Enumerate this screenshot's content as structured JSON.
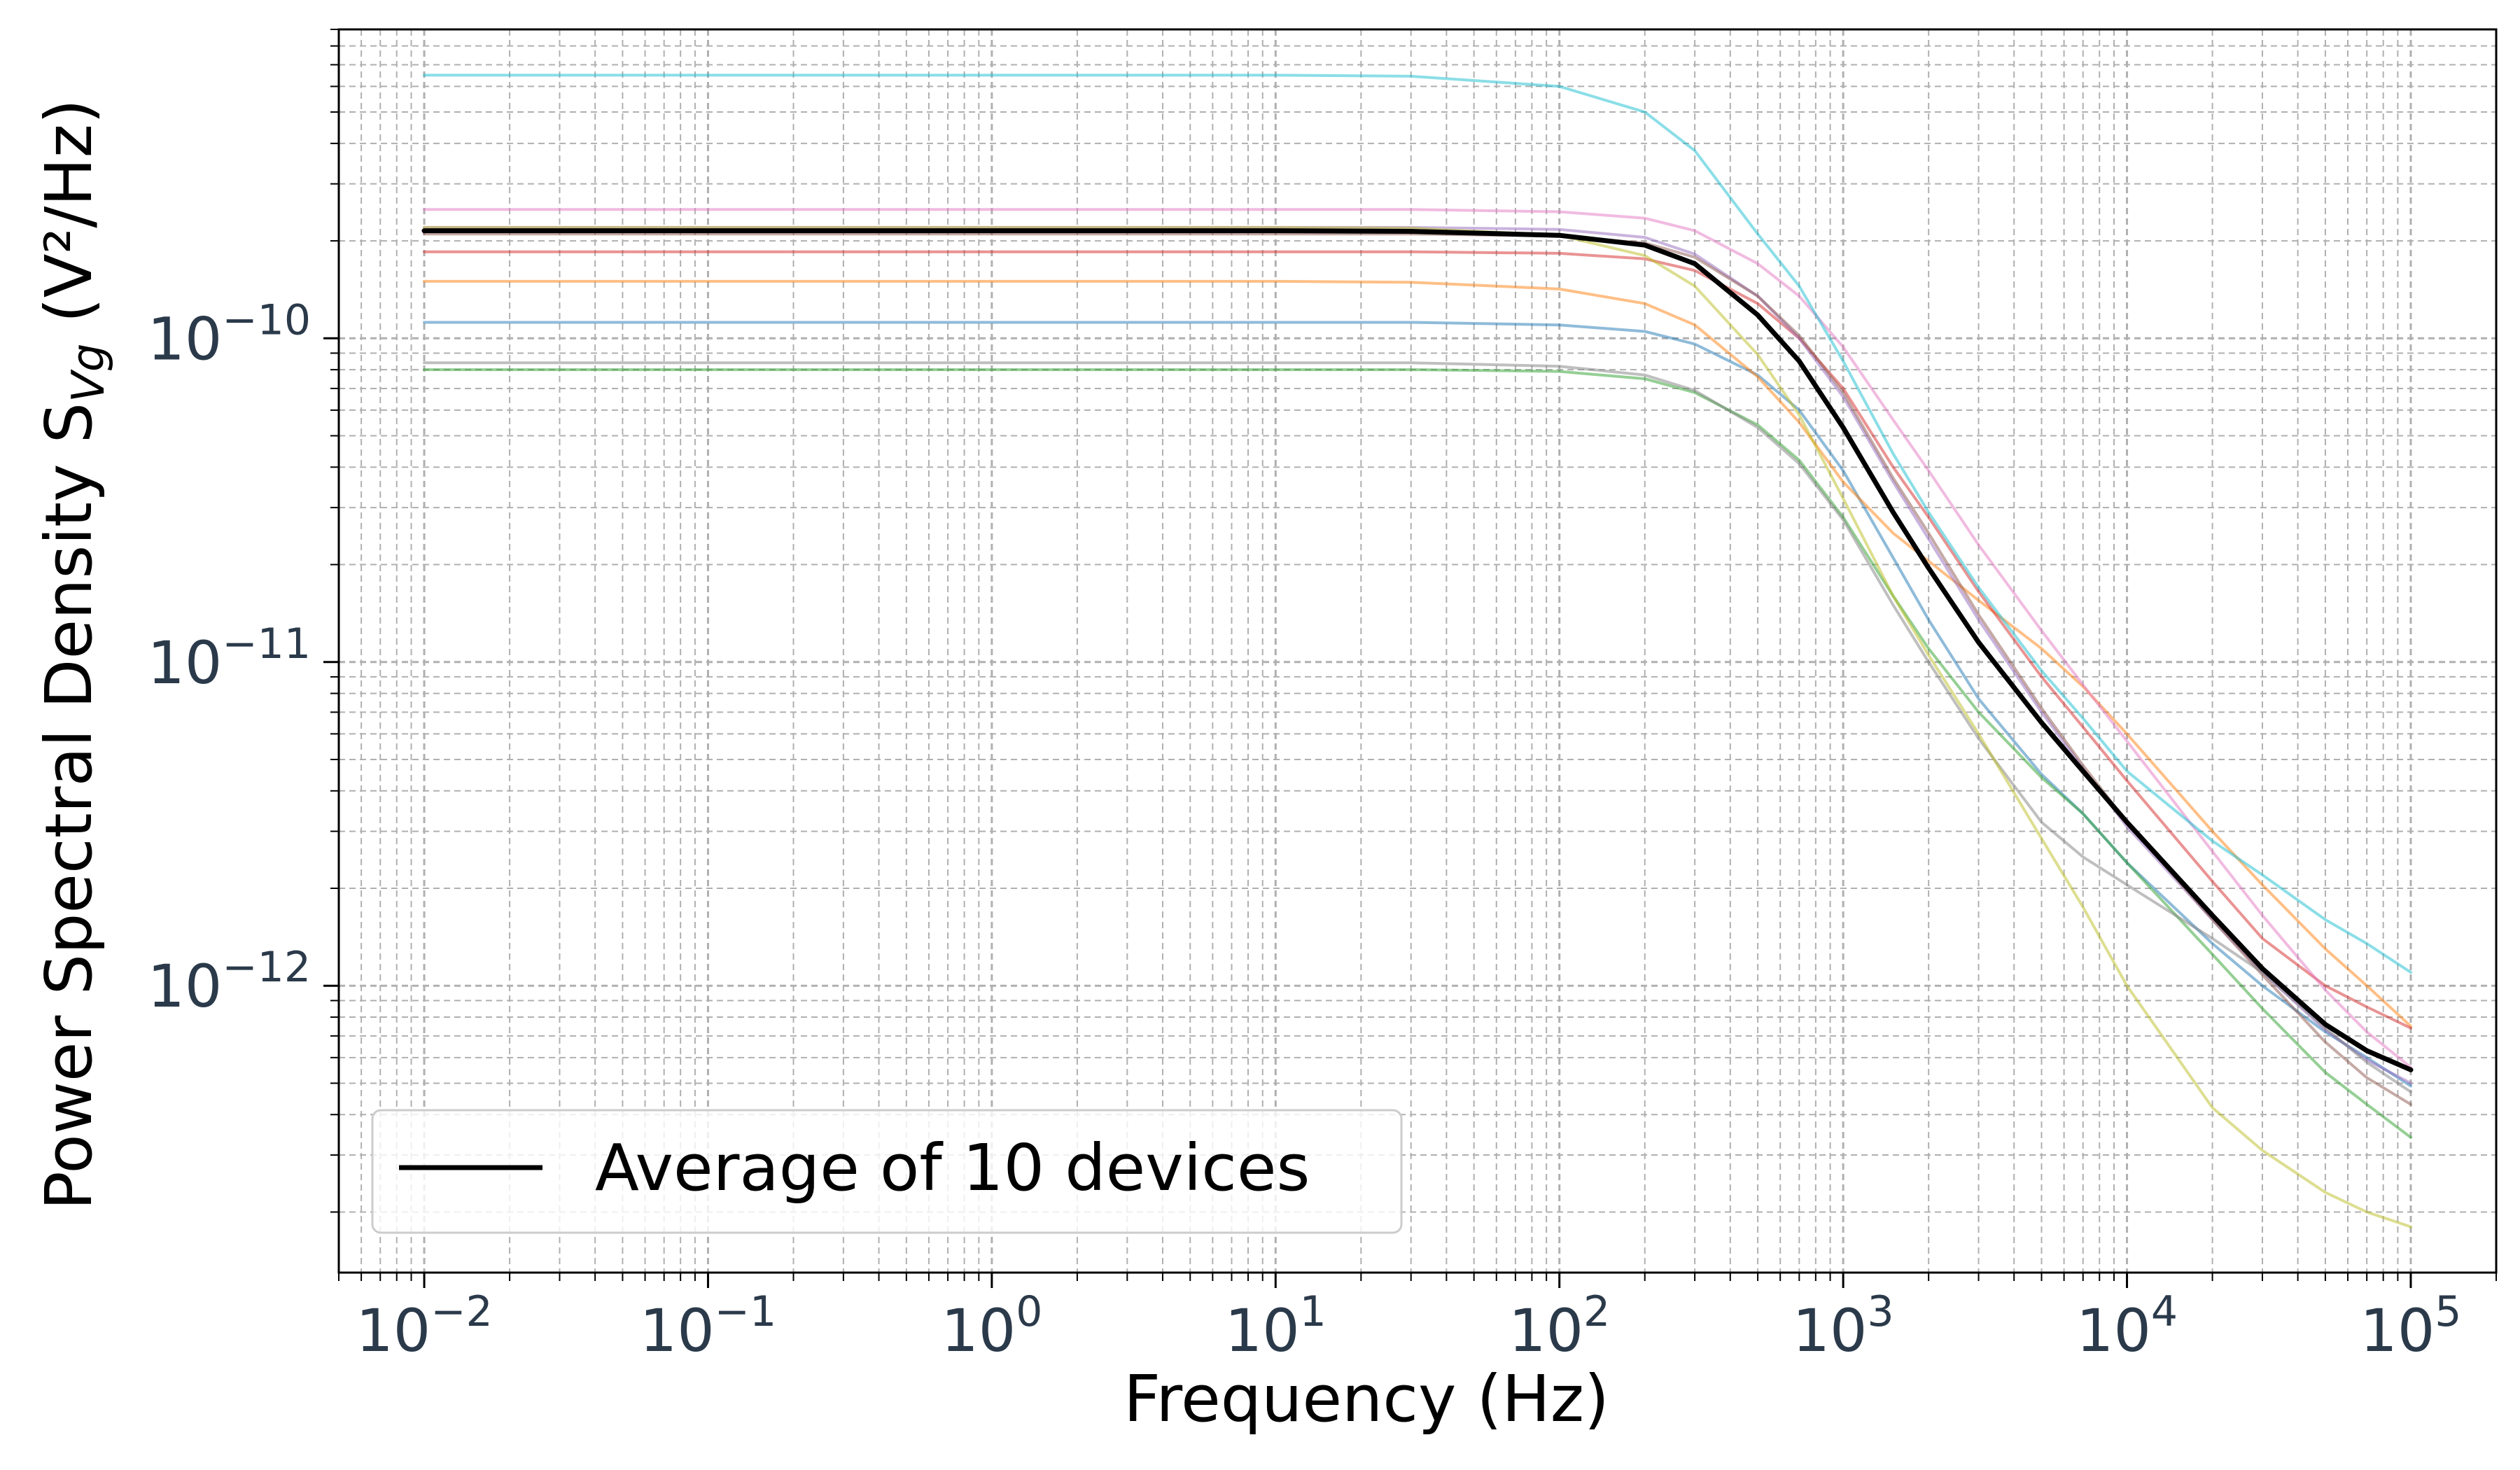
{
  "chart_data": {
    "type": "line",
    "title": "",
    "xlabel": "Frequency (Hz)",
    "ylabel_prefix": "Power Spectral Density S",
    "ylabel_sub": "Vg",
    "ylabel_suffix": " (V²/Hz)",
    "xscale": "log",
    "yscale": "log",
    "xlim": [
      0.005,
      200000
    ],
    "ylim": [
      1.3e-13,
      9e-10
    ],
    "grid": "major and minor, dashed",
    "legend_position": "lower-left",
    "x_ticks": [
      {
        "value": 0.01,
        "base": "10",
        "exp": "−2"
      },
      {
        "value": 0.1,
        "base": "10",
        "exp": "−1"
      },
      {
        "value": 1,
        "base": "10",
        "exp": "0"
      },
      {
        "value": 10,
        "base": "10",
        "exp": "1"
      },
      {
        "value": 100,
        "base": "10",
        "exp": "2"
      },
      {
        "value": 1000,
        "base": "10",
        "exp": "3"
      },
      {
        "value": 10000,
        "base": "10",
        "exp": "4"
      },
      {
        "value": 100000,
        "base": "10",
        "exp": "5"
      }
    ],
    "y_ticks": [
      {
        "value": 1e-12,
        "base": "10",
        "exp": "−12"
      },
      {
        "value": 1e-11,
        "base": "10",
        "exp": "−11"
      },
      {
        "value": 1e-10,
        "base": "10",
        "exp": "−10"
      }
    ],
    "x": [
      0.01,
      0.1,
      1,
      10,
      30,
      100,
      200,
      300,
      500,
      700,
      1000,
      1500,
      2000,
      3000,
      5000,
      7000,
      10000,
      20000,
      30000,
      50000,
      70000,
      100000
    ],
    "series": [
      {
        "color": "#1f77b4",
        "values": [
          1.12e-10,
          1.12e-10,
          1.12e-10,
          1.12e-10,
          1.12e-10,
          1.1e-10,
          1.05e-10,
          9.6e-11,
          7.7e-11,
          6e-11,
          3.9e-11,
          2.1e-11,
          1.35e-11,
          7.7e-12,
          4.5e-12,
          3.4e-12,
          2.4e-12,
          1.35e-12,
          1e-12,
          7.2e-13,
          6e-13,
          4.9e-13
        ]
      },
      {
        "color": "#ff7f0e",
        "values": [
          1.5e-10,
          1.5e-10,
          1.5e-10,
          1.5e-10,
          1.49e-10,
          1.42e-10,
          1.28e-10,
          1.1e-10,
          7.6e-11,
          5.5e-11,
          3.6e-11,
          2.5e-11,
          2.05e-11,
          1.55e-11,
          1.1e-11,
          8.4e-12,
          6e-12,
          3e-12,
          2.05e-12,
          1.3e-12,
          1e-12,
          7.5e-13
        ]
      },
      {
        "color": "#2ca02c",
        "values": [
          8e-11,
          8e-11,
          8e-11,
          8e-11,
          8e-11,
          7.9e-11,
          7.5e-11,
          6.8e-11,
          5.4e-11,
          4.2e-11,
          2.8e-11,
          1.6e-11,
          1.1e-11,
          7e-12,
          4.4e-12,
          3.4e-12,
          2.4e-12,
          1.25e-12,
          8.5e-13,
          5.4e-13,
          4.3e-13,
          3.4e-13
        ]
      },
      {
        "color": "#d62728",
        "values": [
          1.85e-10,
          1.85e-10,
          1.85e-10,
          1.85e-10,
          1.85e-10,
          1.83e-10,
          1.76e-10,
          1.62e-10,
          1.28e-10,
          1e-10,
          7e-11,
          4e-11,
          2.8e-11,
          1.65e-11,
          9e-12,
          6.3e-12,
          4.3e-12,
          2.1e-12,
          1.4e-12,
          1e-12,
          8.6e-13,
          7.4e-13
        ]
      },
      {
        "color": "#9467bd",
        "values": [
          2.2e-10,
          2.2e-10,
          2.2e-10,
          2.2e-10,
          2.2e-10,
          2.17e-10,
          2.05e-10,
          1.82e-10,
          1.35e-10,
          1e-10,
          6.6e-11,
          3.6e-11,
          2.4e-11,
          1.35e-11,
          7e-12,
          4.7e-12,
          3.1e-12,
          1.6e-12,
          1.1e-12,
          7.3e-13,
          5.9e-13,
          5e-13
        ]
      },
      {
        "color": "#8c564b",
        "values": [
          2.1e-10,
          2.1e-10,
          2.1e-10,
          2.1e-10,
          2.1e-10,
          2.07e-10,
          1.97e-10,
          1.78e-10,
          1.35e-10,
          1.02e-10,
          6.8e-11,
          3.7e-11,
          2.5e-11,
          1.4e-11,
          7.2e-12,
          4.8e-12,
          3.2e-12,
          1.6e-12,
          1.08e-12,
          6.7e-13,
          5.2e-13,
          4.3e-13
        ]
      },
      {
        "color": "#e377c2",
        "values": [
          2.5e-10,
          2.5e-10,
          2.5e-10,
          2.5e-10,
          2.5e-10,
          2.46e-10,
          2.35e-10,
          2.15e-10,
          1.7e-10,
          1.35e-10,
          9.4e-11,
          5.6e-11,
          3.9e-11,
          2.3e-11,
          1.25e-11,
          8.5e-12,
          5.7e-12,
          2.6e-12,
          1.65e-12,
          9.7e-13,
          7.2e-13,
          5.6e-13
        ]
      },
      {
        "color": "#7f7f7f",
        "values": [
          8.4e-11,
          8.4e-11,
          8.4e-11,
          8.4e-11,
          8.4e-11,
          8.2e-11,
          7.7e-11,
          6.9e-11,
          5.3e-11,
          4.1e-11,
          2.75e-11,
          1.5e-11,
          1e-11,
          5.8e-12,
          3.2e-12,
          2.5e-12,
          2.05e-12,
          1.4e-12,
          1.1e-12,
          7.4e-13,
          5.8e-13,
          4.7e-13
        ]
      },
      {
        "color": "#bcbd22",
        "values": [
          2.2e-10,
          2.2e-10,
          2.2e-10,
          2.2e-10,
          2.19e-10,
          2.08e-10,
          1.8e-10,
          1.45e-10,
          8.9e-11,
          5.8e-11,
          3.2e-11,
          1.6e-11,
          1.05e-11,
          6e-12,
          2.85e-12,
          1.75e-12,
          1e-12,
          4.2e-13,
          3.1e-13,
          2.3e-13,
          2e-13,
          1.8e-13
        ]
      },
      {
        "color": "#17becf",
        "values": [
          6.5e-10,
          6.5e-10,
          6.5e-10,
          6.5e-10,
          6.45e-10,
          6e-10,
          5e-10,
          3.8e-10,
          2.1e-10,
          1.45e-10,
          8.5e-11,
          4.4e-11,
          2.9e-11,
          1.7e-11,
          9.4e-12,
          6.7e-12,
          4.6e-12,
          2.8e-12,
          2.2e-12,
          1.6e-12,
          1.35e-12,
          1.1e-12
        ]
      },
      {
        "name": "Average of 10 devices",
        "color": "#000000",
        "values": [
          2.15e-10,
          2.15e-10,
          2.15e-10,
          2.15e-10,
          2.14e-10,
          2.08e-10,
          1.94e-10,
          1.7e-10,
          1.18e-10,
          8.5e-11,
          5.3e-11,
          2.9e-11,
          1.95e-11,
          1.15e-11,
          6.5e-12,
          4.6e-12,
          3.2e-12,
          1.65e-12,
          1.13e-12,
          7.6e-13,
          6.3e-13,
          5.5e-13
        ]
      }
    ],
    "legend": {
      "entries": [
        "Average of 10 devices"
      ]
    }
  }
}
